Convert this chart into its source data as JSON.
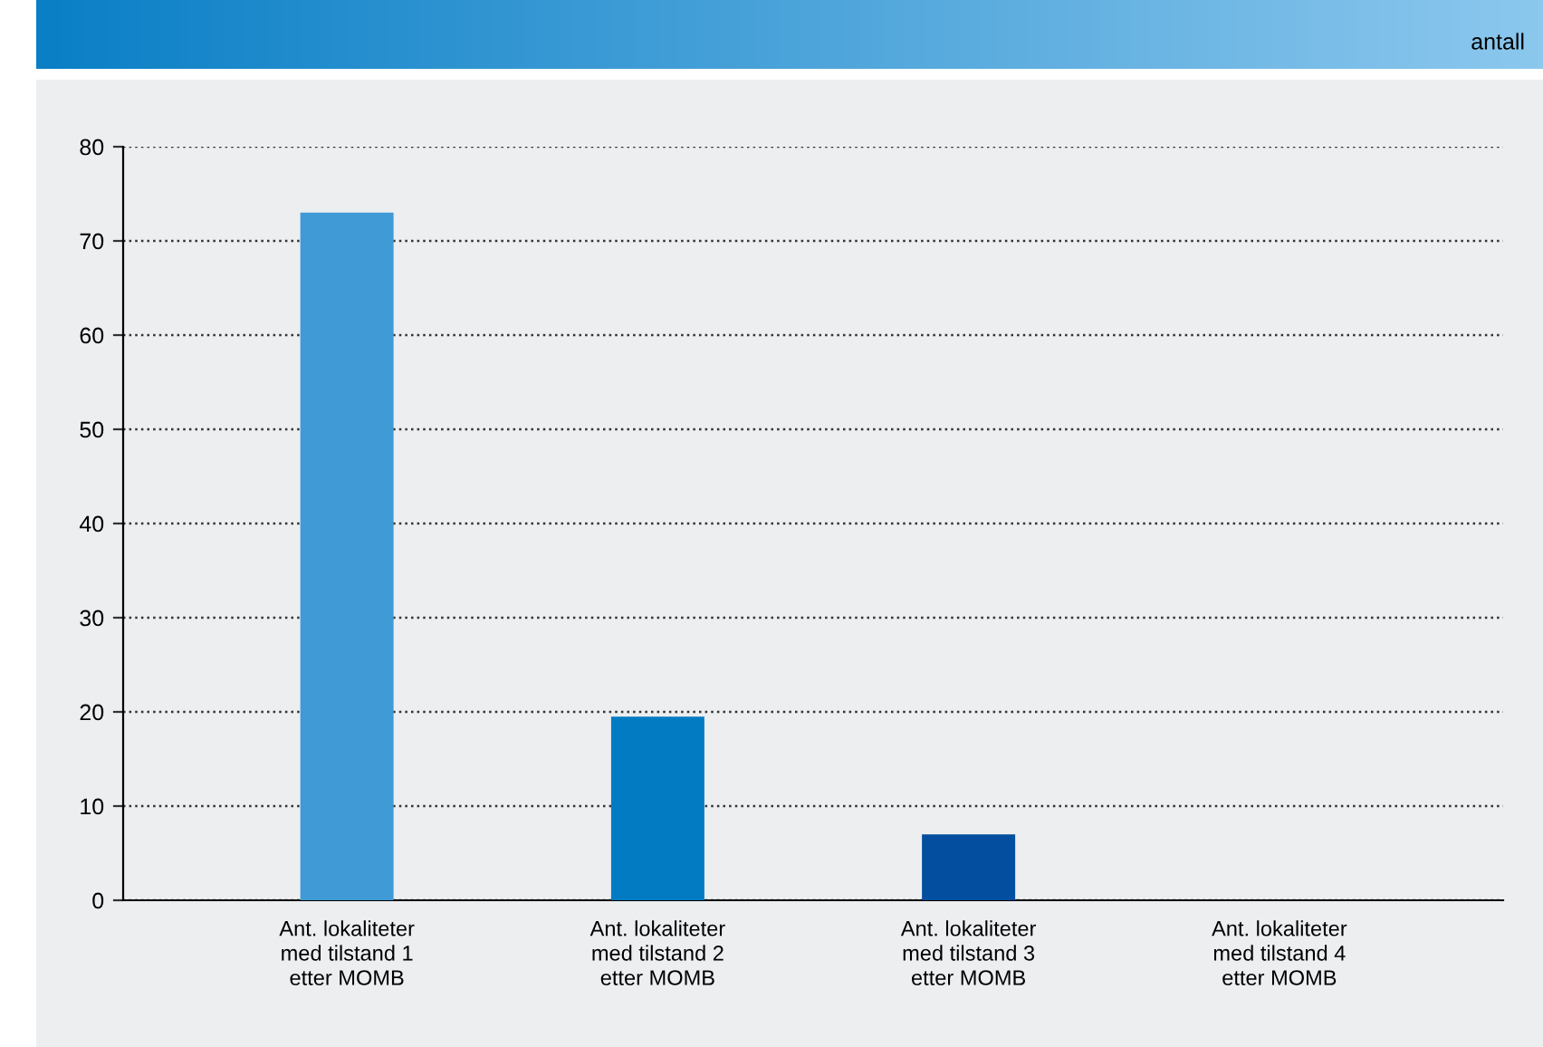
{
  "chart_data": {
    "type": "bar",
    "ylabel": "antall",
    "categories": [
      "Ant. lokaliteter\nmed tilstand 1\netter MOMB",
      "Ant. lokaliteter\nmed tilstand 2\netter MOMB",
      "Ant. lokaliteter\nmed tilstand 3\netter MOMB",
      "Ant. lokaliteter\nmed tilstand 4\netter MOMB"
    ],
    "values": [
      73,
      19.5,
      7,
      0
    ],
    "colors": [
      "#3f9ad6",
      "#037bc2",
      "#034e9e",
      "#034e9e"
    ],
    "ylim": [
      0,
      80
    ],
    "yticks": [
      0,
      10,
      20,
      30,
      40,
      50,
      60,
      70,
      80
    ],
    "grid": "y"
  }
}
